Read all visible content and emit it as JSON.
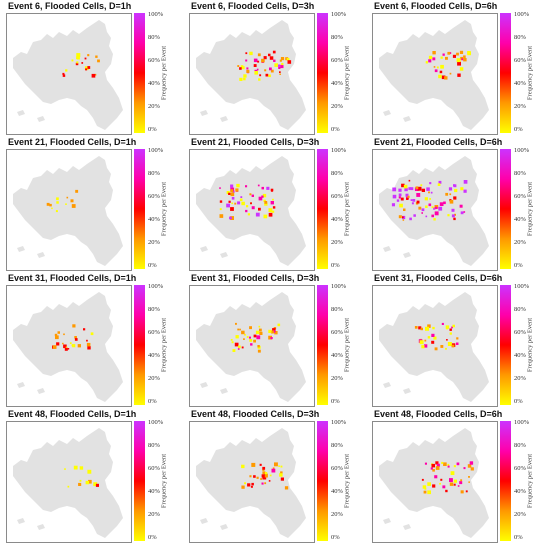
{
  "colorbar": {
    "label": "Frequency per Event",
    "ticks": [
      "100%",
      "80%",
      "60%",
      "40%",
      "20%",
      "0%"
    ],
    "colors": [
      "#ffff00",
      "#ff9900",
      "#ff0000",
      "#ff00aa",
      "#cc33ff"
    ]
  },
  "map_colors": {
    "land": "#e2e2e2",
    "border": "#8a8a8a",
    "background": "#ffffff"
  },
  "panels": [
    {
      "title": "Event 6, Flooded Cells, D=1h",
      "event": 6,
      "duration": "1h",
      "intensity": 0.15
    },
    {
      "title": "Event 6, Flooded Cells, D=3h",
      "event": 6,
      "duration": "3h",
      "intensity": 0.45
    },
    {
      "title": "Event 6, Flooded Cells, D=6h",
      "event": 6,
      "duration": "6h",
      "intensity": 0.3
    },
    {
      "title": "Event 21, Flooded Cells, D=1h",
      "event": 21,
      "duration": "1h",
      "intensity": 0.05
    },
    {
      "title": "Event 21, Flooded Cells, D=3h",
      "event": 21,
      "duration": "3h",
      "intensity": 0.55
    },
    {
      "title": "Event 21, Flooded Cells, D=6h",
      "event": 21,
      "duration": "6h",
      "intensity": 0.85
    },
    {
      "title": "Event 31, Flooded Cells, D=1h",
      "event": 31,
      "duration": "1h",
      "intensity": 0.2
    },
    {
      "title": "Event 31, Flooded Cells, D=3h",
      "event": 31,
      "duration": "3h",
      "intensity": 0.35
    },
    {
      "title": "Event 31, Flooded Cells, D=6h",
      "event": 31,
      "duration": "6h",
      "intensity": 0.3
    },
    {
      "title": "Event 48, Flooded Cells, D=1h",
      "event": 48,
      "duration": "1h",
      "intensity": 0.05
    },
    {
      "title": "Event 48, Flooded Cells, D=3h",
      "event": 48,
      "duration": "3h",
      "intensity": 0.3
    },
    {
      "title": "Event 48, Flooded Cells, D=6h",
      "event": 48,
      "duration": "6h",
      "intensity": 0.4
    }
  ]
}
